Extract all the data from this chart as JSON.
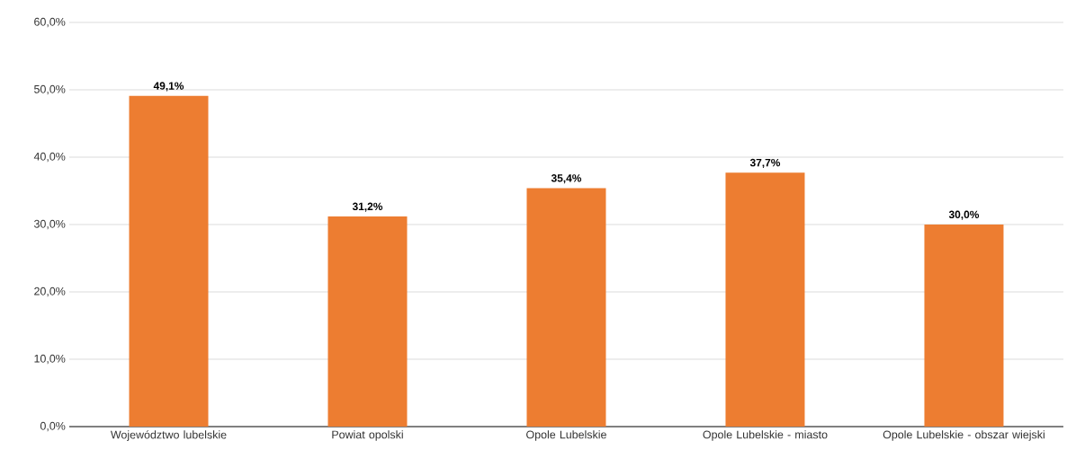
{
  "chart_data": {
    "type": "bar",
    "categories": [
      "Województwo lubelskie",
      "Powiat opolski",
      "Opole Lubelskie",
      "Opole Lubelskie - miasto",
      "Opole Lubelskie - obszar wiejski"
    ],
    "values": [
      49.1,
      31.2,
      35.4,
      37.7,
      30.0
    ],
    "value_labels": [
      "49,1%",
      "31,2%",
      "35,4%",
      "37,7%",
      "30,0%"
    ],
    "color": "#ed7d31",
    "ylim": [
      0,
      60
    ],
    "yticks": [
      {
        "value": 0,
        "label": "0,0%"
      },
      {
        "value": 10,
        "label": "10,0%"
      },
      {
        "value": 20,
        "label": "20,0%"
      },
      {
        "value": 30,
        "label": "30,0%"
      },
      {
        "value": 40,
        "label": "40,0%"
      },
      {
        "value": 50,
        "label": "50,0%"
      },
      {
        "value": 60,
        "label": "60,0%"
      }
    ],
    "grid": "y"
  }
}
